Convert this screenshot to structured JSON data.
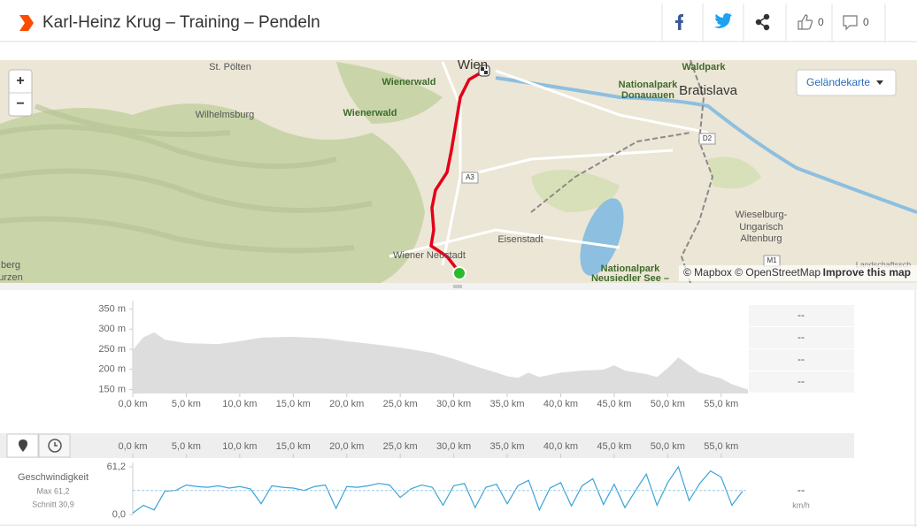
{
  "header": {
    "title": "Karl-Heinz Krug – Training – Pendeln",
    "likes": 0,
    "comments": 0
  },
  "map": {
    "labels": [
      "St. Pölten",
      "Wilhelmsburg",
      "Wienerwald",
      "Wienerwald",
      "Wien",
      "Nationalpark",
      "Donauauen",
      "Bratislava",
      "Waldpark",
      "Eisenstadt",
      "Wiener Neustadt",
      "Wieselburg-",
      "Ungarisch",
      "Altenburg",
      "Nationalpark",
      "Neusiedler See –",
      "berg",
      "urzen",
      "Landschaftssch"
    ],
    "road_labels": [
      "A3",
      "D2",
      "M1"
    ],
    "zoom_in": "+",
    "zoom_out": "−",
    "layer_button": "Geländekarte",
    "attribution": "© Mapbox © OpenStreetMap",
    "improve": "Improve this map"
  },
  "distance_axis": {
    "xlim": [
      0,
      57.5
    ],
    "xticks": [
      {
        "value": 0,
        "label": "0,0 km"
      },
      {
        "value": 5,
        "label": "5,0 km"
      },
      {
        "value": 10,
        "label": "10,0 km"
      },
      {
        "value": 15,
        "label": "15,0 km"
      },
      {
        "value": 20,
        "label": "20,0 km"
      },
      {
        "value": 25,
        "label": "25,0 km"
      },
      {
        "value": 30,
        "label": "30,0 km"
      },
      {
        "value": 35,
        "label": "35,0 km"
      },
      {
        "value": 40,
        "label": "40,0 km"
      },
      {
        "value": 45,
        "label": "45,0 km"
      },
      {
        "value": 50,
        "label": "50,0 km"
      },
      {
        "value": 55,
        "label": "55,0 km"
      }
    ]
  },
  "elevation": {
    "type": "area",
    "color": "#dddddd",
    "x": [
      0,
      1,
      2,
      3,
      5,
      8,
      10,
      12,
      15,
      18,
      20,
      23,
      25,
      28,
      30,
      32,
      34,
      35,
      36,
      37,
      38,
      40,
      42,
      44,
      45,
      46,
      48,
      49,
      50,
      51,
      52,
      53,
      55,
      56,
      57.5
    ],
    "values": [
      248,
      280,
      292,
      274,
      265,
      263,
      270,
      279,
      281,
      277,
      270,
      261,
      254,
      241,
      226,
      208,
      192,
      183,
      179,
      192,
      181,
      192,
      197,
      199,
      210,
      197,
      188,
      181,
      203,
      230,
      210,
      192,
      177,
      163,
      150
    ],
    "ylim": [
      140,
      360
    ],
    "yticks": [
      {
        "value": 350,
        "label": "350 m"
      },
      {
        "value": 300,
        "label": "300 m"
      },
      {
        "value": 250,
        "label": "250 m"
      },
      {
        "value": 200,
        "label": "200 m"
      },
      {
        "value": 150,
        "label": "150 m"
      }
    ],
    "side_values": [
      "--",
      "--",
      "--",
      "--"
    ]
  },
  "speed": {
    "type": "line",
    "color": "#3ba3d8",
    "label": "Geschwindigkeit",
    "max_label": "Max 61,2",
    "average_label": "Schnitt 30,9",
    "average": 30.9,
    "x": [
      0,
      1,
      2,
      3,
      4,
      5,
      6,
      7,
      8,
      9,
      10,
      11,
      12,
      13,
      14,
      15,
      16,
      17,
      18,
      19,
      20,
      21,
      22,
      23,
      24,
      25,
      26,
      27,
      28,
      29,
      30,
      31,
      32,
      33,
      34,
      35,
      36,
      37,
      38,
      39,
      40,
      41,
      42,
      43,
      44,
      45,
      46,
      47,
      48,
      49,
      50,
      51,
      52,
      53,
      54,
      55,
      56,
      57
    ],
    "values": [
      2,
      12,
      6,
      30,
      31,
      38,
      36,
      35,
      37,
      34,
      36,
      33,
      14,
      37,
      35,
      34,
      31,
      36,
      38,
      8,
      36,
      35,
      37,
      40,
      38,
      22,
      33,
      38,
      35,
      12,
      37,
      40,
      9,
      35,
      39,
      14,
      37,
      44,
      6,
      34,
      41,
      11,
      37,
      46,
      13,
      39,
      9,
      31,
      52,
      12,
      41,
      61.2,
      18,
      40,
      56,
      48,
      12,
      30
    ],
    "ylim": [
      0,
      61.2
    ],
    "yticks": [
      {
        "value": 61.2,
        "label": "61,2"
      },
      {
        "value": 0,
        "label": "0,0"
      }
    ],
    "side_value": "--",
    "unit": "km/h"
  }
}
